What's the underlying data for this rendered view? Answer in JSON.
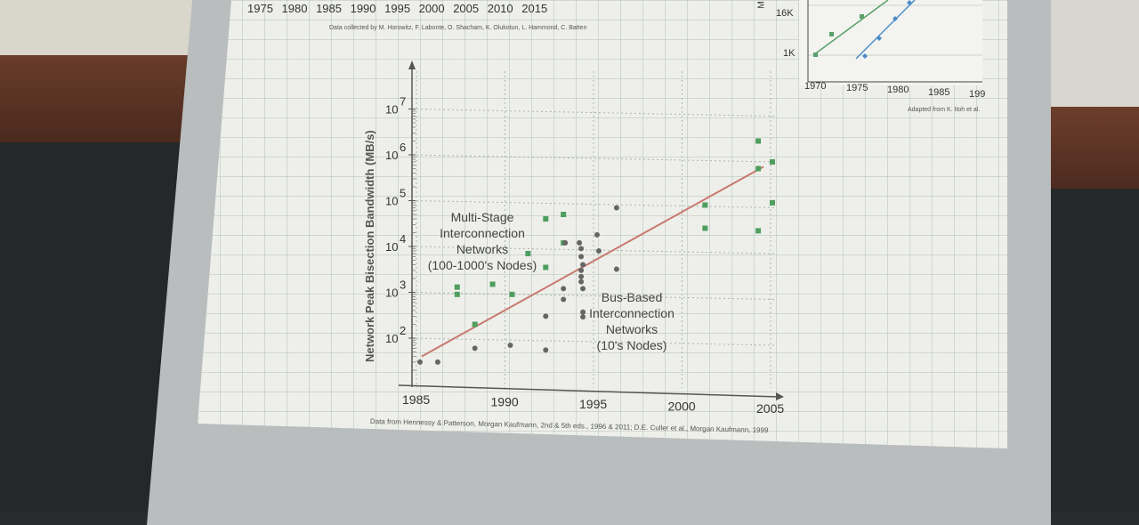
{
  "top_strip": {
    "axis_years": "1975 1980 1985 1990 1995 2000 2005 2010 2015",
    "credit": "Data collected by M. Horowitz, F. Labonte, O. Shacham, K. Olukotun, L. Hammond, C. Batten"
  },
  "inset": {
    "y_ticks": [
      "16K",
      "1K"
    ],
    "x_ticks": [
      "1970",
      "1975",
      "1980",
      "1985",
      "199"
    ],
    "credit": "Adapted from K. Itoh et al.",
    "axis_letter": "M"
  },
  "chart_data": {
    "type": "scatter",
    "title": "",
    "xlabel": "",
    "ylabel": "Network Peak Bisection Bandwidth (MB/s)",
    "x_ticks": [
      "1985",
      "1990",
      "1995",
      "2000",
      "2005"
    ],
    "y_tick_exponents": [
      "2",
      "3",
      "4",
      "5",
      "6",
      "7"
    ],
    "y_scale": "log10",
    "xlim": [
      1985,
      2005
    ],
    "ylim": [
      20,
      40000000
    ],
    "grid": true,
    "series": [
      {
        "name": "Multi-Stage Interconnection Networks (100-1000's Nodes)",
        "marker": "square",
        "color": "#4f9e5e",
        "points": [
          [
            1987.3,
            900
          ],
          [
            1987.3,
            1300
          ],
          [
            1988.3,
            200
          ],
          [
            1989.3,
            1500
          ],
          [
            1990.4,
            900
          ],
          [
            1991.3,
            7000
          ],
          [
            1992.3,
            3500
          ],
          [
            1992.3,
            40000
          ],
          [
            1993.3,
            50000
          ],
          [
            1993.3,
            12000
          ],
          [
            2001.3,
            80000
          ],
          [
            2001.3,
            25000
          ],
          [
            2004.3,
            2000000
          ],
          [
            2004.3,
            500000
          ],
          [
            2004.3,
            22000
          ],
          [
            2005.1,
            90000
          ],
          [
            2005.1,
            700000
          ]
        ]
      },
      {
        "name": "Bus-Based Interconnection Networks (10's Nodes)",
        "marker": "circle",
        "color": "#666666",
        "points": [
          [
            1985.2,
            30
          ],
          [
            1986.2,
            30
          ],
          [
            1988.3,
            60
          ],
          [
            1990.3,
            70
          ],
          [
            1992.3,
            55
          ],
          [
            1992.3,
            300
          ],
          [
            1993.3,
            700
          ],
          [
            1993.3,
            1200
          ],
          [
            1993.4,
            12000
          ],
          [
            1994.2,
            12000
          ],
          [
            1994.3,
            9000
          ],
          [
            1994.3,
            6000
          ],
          [
            1994.4,
            4000
          ],
          [
            1994.3,
            3000
          ],
          [
            1994.3,
            2200
          ],
          [
            1994.3,
            1700
          ],
          [
            1994.4,
            1200
          ],
          [
            1994.4,
            370
          ],
          [
            1994.4,
            290
          ],
          [
            1995.2,
            18000
          ],
          [
            1995.3,
            8000
          ],
          [
            1996.3,
            70000
          ],
          [
            1996.3,
            3200
          ]
        ]
      }
    ],
    "trend_line": {
      "color": "#c9786e",
      "from": [
        1985.3,
        40
      ],
      "to": [
        2004.6,
        550000
      ]
    },
    "annotations": [
      {
        "lines": [
          "Multi-Stage",
          "Interconnection",
          "Networks",
          "(100-1000's Nodes)"
        ]
      },
      {
        "lines": [
          "Bus-Based",
          "Interconnection",
          "Networks",
          "(10's Nodes)"
        ]
      }
    ]
  },
  "footer": {
    "credit": "Data from Hennessy & Patterson, Morgan Kaufmann, 2nd & 5th eds., 1996 & 2011; D.E. Culler et al., Morgan Kaufmann, 1999"
  }
}
